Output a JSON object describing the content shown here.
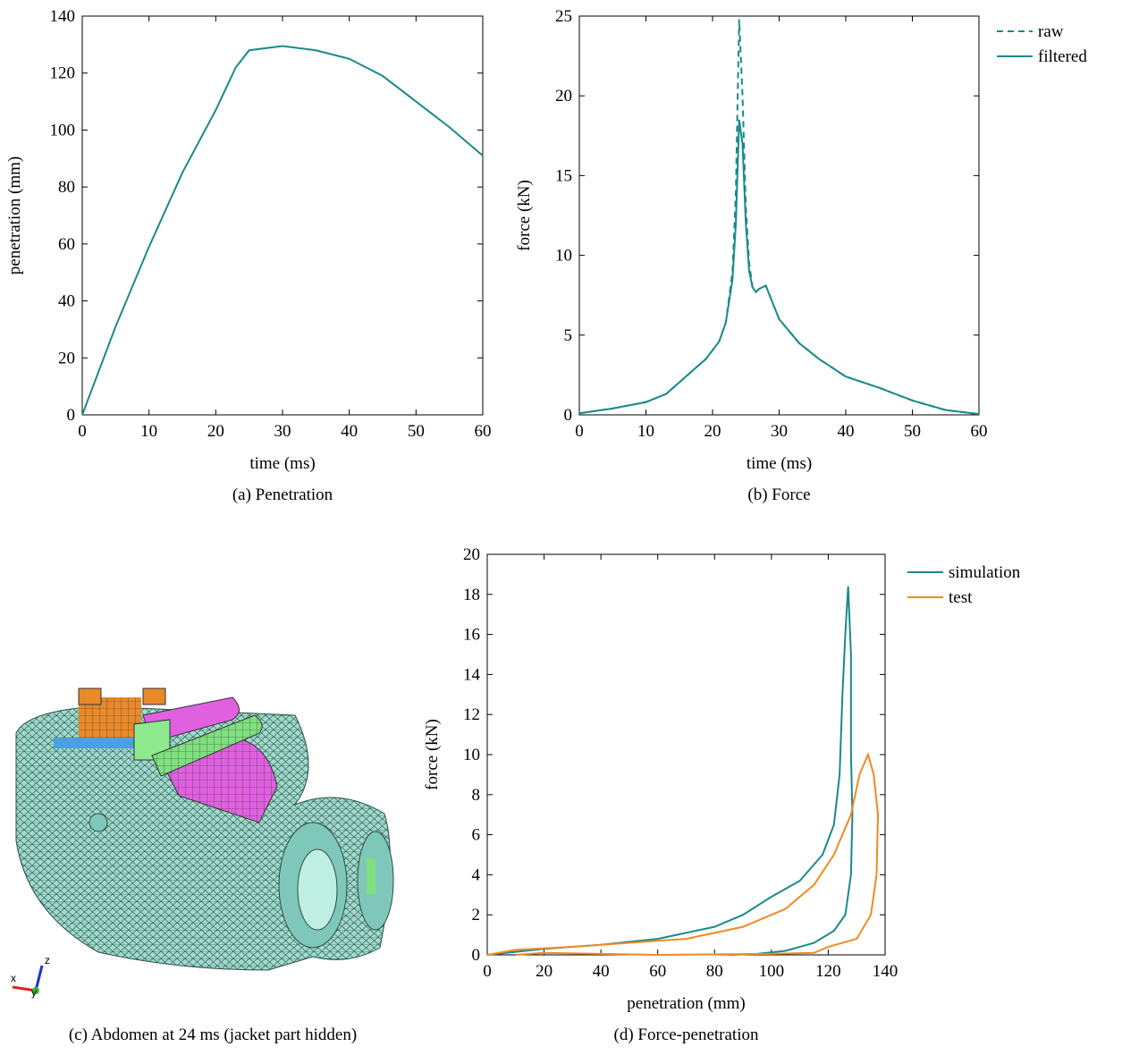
{
  "chart_data": [
    {
      "type": "line",
      "caption": "(a) Penetration",
      "x_label": "time (ms)",
      "y_label": "penetration (mm)",
      "x": [
        0,
        5,
        10,
        15,
        20,
        23,
        25,
        30,
        35,
        40,
        45,
        50,
        55,
        60
      ],
      "series": [
        {
          "color": "#1a8a8a",
          "values": [
            0,
            31,
            59,
            85,
            107,
            122,
            128,
            129.5,
            128,
            125,
            119,
            110,
            101,
            91
          ]
        }
      ],
      "xlim": [
        0,
        60
      ],
      "xticks": [
        0,
        10,
        20,
        30,
        40,
        50,
        60
      ],
      "ylim": [
        0,
        140
      ],
      "yticks": [
        0,
        20,
        40,
        60,
        80,
        100,
        120,
        140
      ]
    },
    {
      "type": "line",
      "caption": "(b) Force",
      "x_label": "time (ms)",
      "y_label": "force (kN)",
      "x": [
        0,
        5,
        10,
        13,
        16,
        19,
        21,
        22,
        23,
        23.5,
        24,
        24.5,
        25,
        25.5,
        26,
        26.5,
        27,
        28,
        30,
        33,
        36,
        40,
        45,
        50,
        55,
        60
      ],
      "series": [
        {
          "name": "raw",
          "color": "#1a8a8a",
          "dashed": true,
          "values": [
            0.1,
            0.4,
            0.8,
            1.3,
            2.4,
            3.5,
            4.6,
            5.8,
            9,
            14,
            24.8,
            20,
            13,
            9.5,
            8,
            7.7,
            7.9,
            8.1,
            6.0,
            4.5,
            3.5,
            2.4,
            1.7,
            0.9,
            0.3,
            0.05
          ]
        },
        {
          "name": "filtered",
          "color": "#1a8a8a",
          "dashed": false,
          "values": [
            0.1,
            0.4,
            0.8,
            1.3,
            2.4,
            3.5,
            4.6,
            5.8,
            8.5,
            12,
            18.5,
            17,
            12,
            9,
            8,
            7.7,
            7.9,
            8.1,
            6.0,
            4.5,
            3.5,
            2.4,
            1.7,
            0.9,
            0.3,
            0.05
          ]
        }
      ],
      "xlim": [
        0,
        60
      ],
      "xticks": [
        0,
        10,
        20,
        30,
        40,
        50,
        60
      ],
      "ylim": [
        0,
        25
      ],
      "yticks": [
        0,
        5,
        10,
        15,
        20,
        25
      ],
      "legend": "outside-right"
    },
    {
      "type": "line",
      "caption": "(d) Force-penetration",
      "x_label": "penetration (mm)",
      "y_label": "force (kN)",
      "series": [
        {
          "name": "simulation",
          "color": "#1a8a8a",
          "dashed": false,
          "x": [
            0,
            20,
            40,
            60,
            80,
            90,
            100,
            110,
            118,
            122,
            124,
            125,
            126,
            127,
            128,
            128,
            128.5,
            128,
            126,
            122,
            115,
            105,
            95,
            85
          ],
          "values": [
            0,
            0.3,
            0.5,
            0.8,
            1.4,
            2.0,
            2.9,
            3.7,
            5.0,
            6.5,
            9,
            13,
            16,
            18.4,
            15,
            10,
            7,
            4,
            2,
            1.2,
            0.6,
            0.2,
            0.05,
            0
          ]
        },
        {
          "name": "test",
          "color": "#f08a24",
          "dashed": false,
          "x": [
            0,
            10,
            30,
            50,
            70,
            90,
            105,
            115,
            122,
            128,
            131,
            134,
            136,
            137.5,
            137,
            135,
            130,
            120,
            115,
            100,
            60,
            20,
            10
          ],
          "values": [
            0,
            0.25,
            0.4,
            0.6,
            0.8,
            1.4,
            2.3,
            3.5,
            5,
            7,
            9,
            10,
            9,
            7,
            4,
            2,
            0.8,
            0.4,
            0.1,
            0.05,
            0,
            0.1,
            0
          ]
        }
      ],
      "xlim": [
        0,
        140
      ],
      "xticks": [
        0,
        20,
        40,
        60,
        80,
        100,
        120,
        140
      ],
      "ylim": [
        0,
        20
      ],
      "yticks": [
        0,
        2,
        4,
        6,
        8,
        10,
        12,
        14,
        16,
        18,
        20
      ],
      "legend": "outside-right"
    }
  ],
  "image": {
    "caption": "(c) Abdomen at 24 ms (jacket part hidden)",
    "axis_labels": [
      "x",
      "y",
      "z"
    ]
  }
}
